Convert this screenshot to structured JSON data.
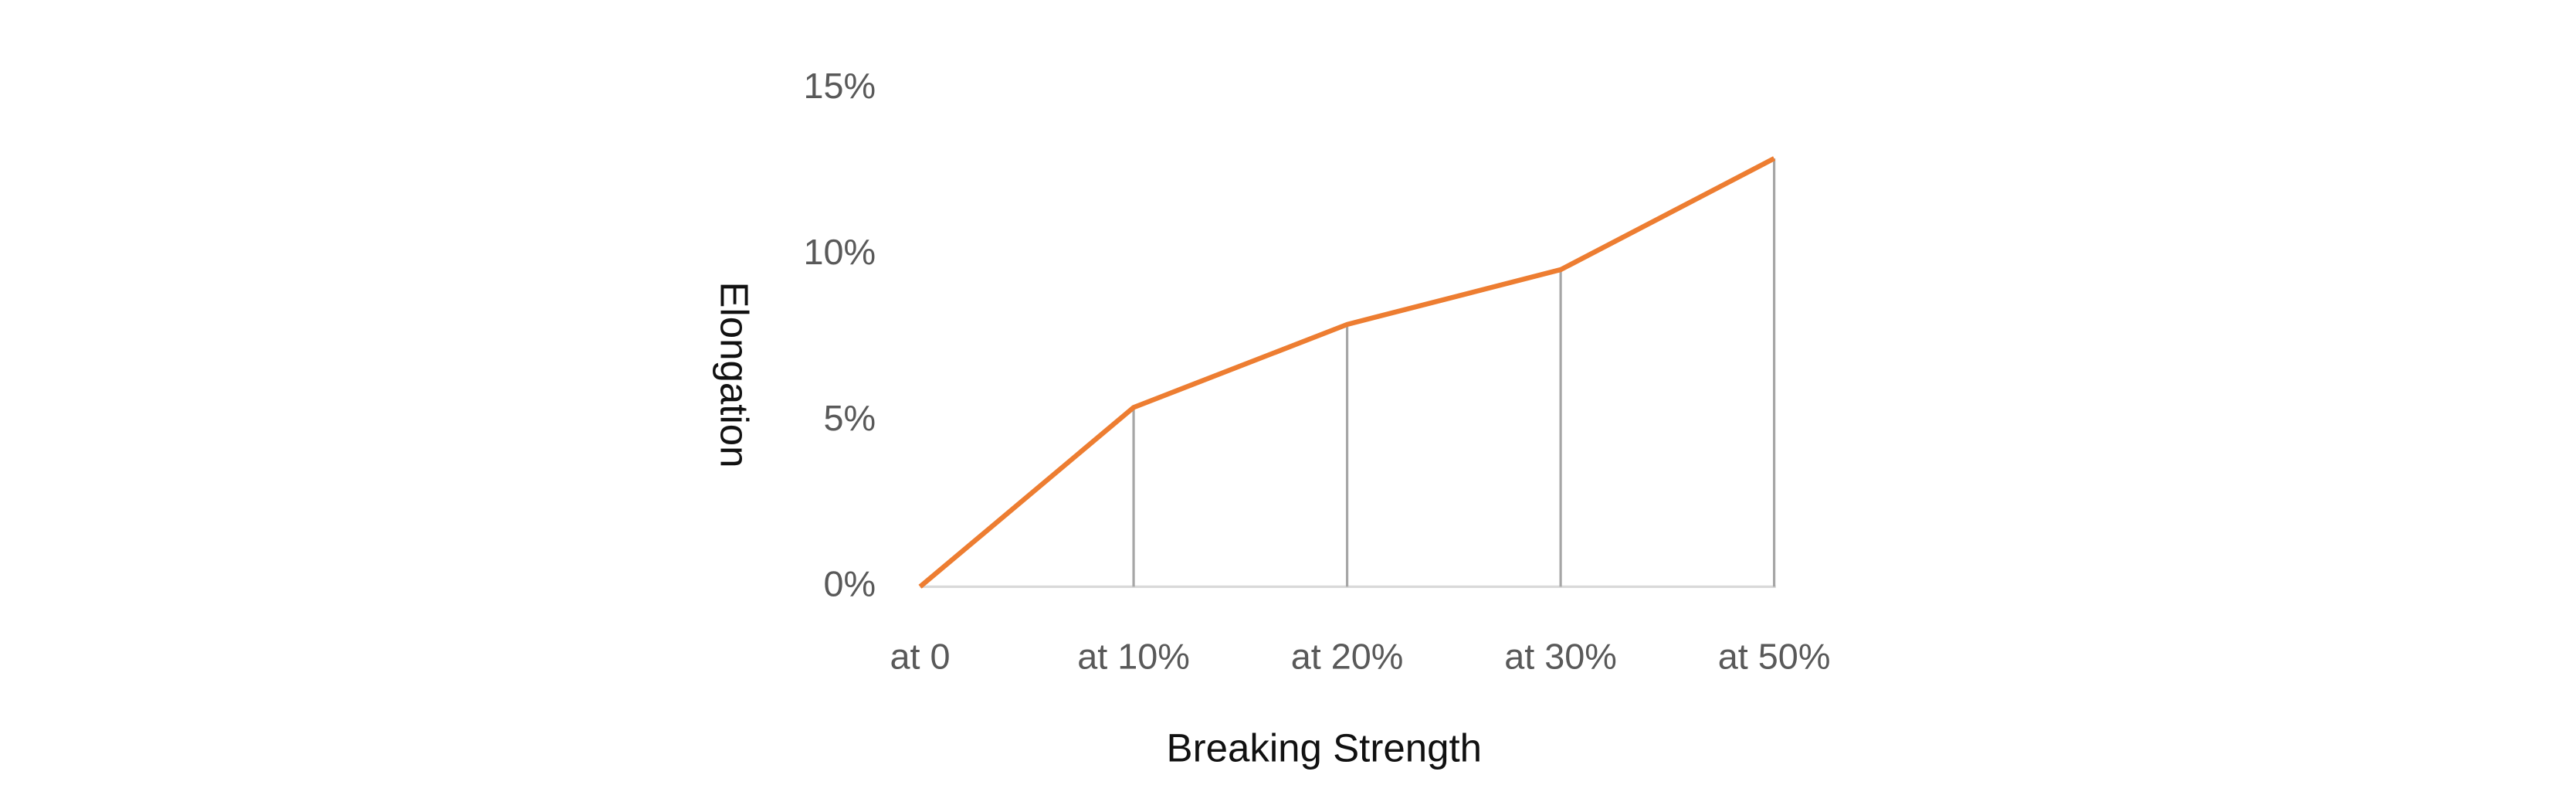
{
  "chart_data": {
    "type": "line",
    "x_label": "Breaking Strength",
    "y_label": "Elongation",
    "categories": [
      "at 0",
      "at 10%",
      "at 20%",
      "at 30%",
      "at 50%"
    ],
    "series": [
      {
        "name": "Elongation",
        "color": "#ed7d31",
        "values": [
          0,
          5.4,
          7.9,
          9.55,
          12.9
        ]
      }
    ],
    "ylim": [
      0,
      15
    ],
    "yticks": [
      {
        "value": 0,
        "label": "0%"
      },
      {
        "value": 5,
        "label": "5%"
      },
      {
        "value": 10,
        "label": "10%"
      },
      {
        "value": 15,
        "label": "15%"
      }
    ],
    "drop_lines": true,
    "legend": false
  }
}
